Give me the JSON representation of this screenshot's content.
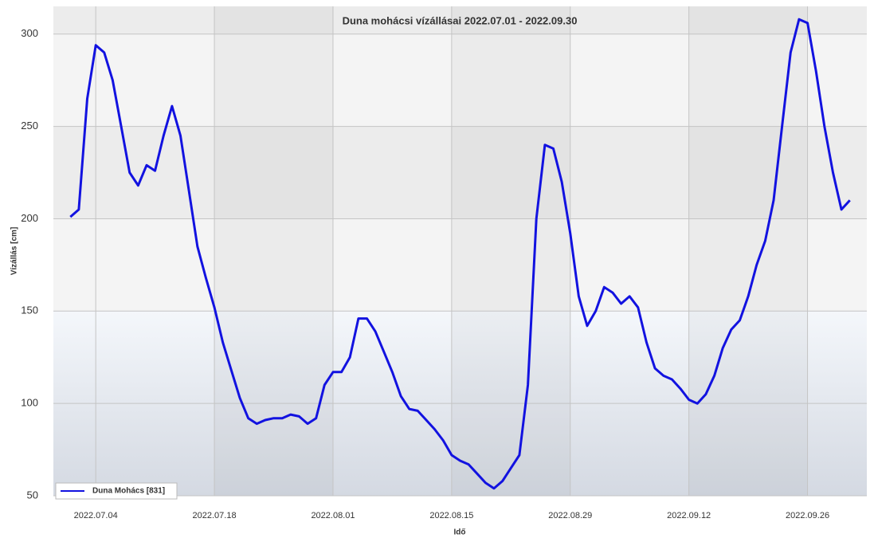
{
  "chart_data": {
    "type": "line",
    "title": "Duna mohácsi vízállásai 2022.07.01 - 2022.09.30",
    "x_label": "Idő",
    "y_label": "Vízállás [cm]",
    "x": [
      "2022.07.01",
      "2022.07.02",
      "2022.07.03",
      "2022.07.04",
      "2022.07.05",
      "2022.07.06",
      "2022.07.07",
      "2022.07.08",
      "2022.07.09",
      "2022.07.10",
      "2022.07.11",
      "2022.07.12",
      "2022.07.13",
      "2022.07.14",
      "2022.07.15",
      "2022.07.16",
      "2022.07.17",
      "2022.07.18",
      "2022.07.19",
      "2022.07.20",
      "2022.07.21",
      "2022.07.22",
      "2022.07.23",
      "2022.07.24",
      "2022.07.25",
      "2022.07.26",
      "2022.07.27",
      "2022.07.28",
      "2022.07.29",
      "2022.07.30",
      "2022.07.31",
      "2022.08.01",
      "2022.08.02",
      "2022.08.03",
      "2022.08.04",
      "2022.08.05",
      "2022.08.06",
      "2022.08.07",
      "2022.08.08",
      "2022.08.09",
      "2022.08.10",
      "2022.08.11",
      "2022.08.12",
      "2022.08.13",
      "2022.08.14",
      "2022.08.15",
      "2022.08.16",
      "2022.08.17",
      "2022.08.18",
      "2022.08.19",
      "2022.08.20",
      "2022.08.21",
      "2022.08.22",
      "2022.08.23",
      "2022.08.24",
      "2022.08.25",
      "2022.08.26",
      "2022.08.27",
      "2022.08.28",
      "2022.08.29",
      "2022.08.30",
      "2022.08.31",
      "2022.09.01",
      "2022.09.02",
      "2022.09.03",
      "2022.09.04",
      "2022.09.05",
      "2022.09.06",
      "2022.09.07",
      "2022.09.08",
      "2022.09.09",
      "2022.09.10",
      "2022.09.11",
      "2022.09.12",
      "2022.09.13",
      "2022.09.14",
      "2022.09.15",
      "2022.09.16",
      "2022.09.17",
      "2022.09.18",
      "2022.09.19",
      "2022.09.20",
      "2022.09.21",
      "2022.09.22",
      "2022.09.23",
      "2022.09.24",
      "2022.09.25",
      "2022.09.26",
      "2022.09.27",
      "2022.09.28",
      "2022.09.29",
      "2022.09.30",
      "2022.10.01"
    ],
    "series": [
      {
        "name": "Duna Mohács [831]",
        "color": "#1212e0",
        "values": [
          201,
          205,
          265,
          294,
          290,
          275,
          250,
          225,
          218,
          229,
          226,
          245,
          261,
          245,
          215,
          185,
          168,
          152,
          133,
          118,
          103,
          92,
          89,
          91,
          92,
          92,
          94,
          93,
          89,
          92,
          110,
          117,
          117,
          125,
          146,
          146,
          139,
          128,
          117,
          104,
          97,
          96,
          91,
          86,
          80,
          72,
          69,
          67,
          62,
          57,
          54,
          58,
          65,
          72,
          110,
          200,
          240,
          238,
          220,
          192,
          158,
          142,
          150,
          163,
          160,
          154,
          158,
          152,
          133,
          119,
          115,
          113,
          108,
          102,
          100,
          105,
          115,
          130,
          140,
          145,
          158,
          175,
          188,
          210,
          250,
          290,
          308,
          306,
          280,
          250,
          225,
          205,
          210
        ]
      }
    ],
    "xlim": [
      "2022.06.29",
      "2022.10.03"
    ],
    "xticks": [
      "2022.07.04",
      "2022.07.18",
      "2022.08.01",
      "2022.08.15",
      "2022.08.29",
      "2022.09.12",
      "2022.09.26"
    ],
    "ylim": [
      50,
      315
    ],
    "yticks": [
      50,
      100,
      150,
      200,
      250,
      300
    ],
    "grid": true,
    "legend": "lower left"
  }
}
